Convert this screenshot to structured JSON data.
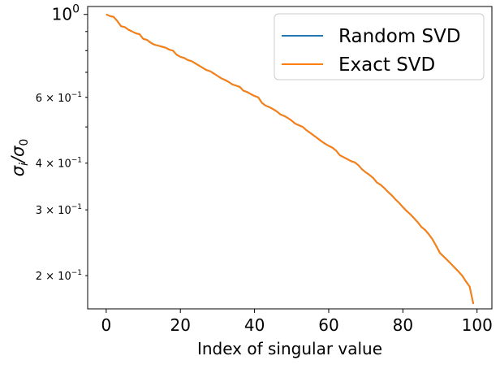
{
  "chart_data": {
    "type": "line",
    "title": "",
    "xlabel": "Index of singular value",
    "ylabel_main": "σ",
    "ylabel_sub1": "i",
    "ylabel_sep": "/",
    "ylabel_main2": "σ",
    "ylabel_sub2": "0",
    "xlim": [
      -5,
      104
    ],
    "ylim": [
      0.163,
      1.05
    ],
    "yscale": "log",
    "grid": false,
    "legend_position": "upper-right",
    "x_ticks": [
      0,
      20,
      40,
      60,
      80,
      100
    ],
    "x_tick_labels": [
      "0",
      "20",
      "40",
      "60",
      "80",
      "100"
    ],
    "y_major_ticks": [
      {
        "value": 1.0,
        "base": "10",
        "exp": "0",
        "coef": ""
      }
    ],
    "y_minor_labeled_ticks": [
      {
        "value": 0.6,
        "coef": "6 × ",
        "base": "10",
        "exp": "−1"
      },
      {
        "value": 0.4,
        "coef": "4 × ",
        "base": "10",
        "exp": "−1"
      },
      {
        "value": 0.3,
        "coef": "3 × ",
        "base": "10",
        "exp": "−1"
      },
      {
        "value": 0.2,
        "coef": "2 × ",
        "base": "10",
        "exp": "−1"
      }
    ],
    "y_minor_unlabeled_ticks": [
      0.9,
      0.8,
      0.7,
      0.5
    ],
    "series": [
      {
        "name": "Random SVD",
        "color": "#1f77b4",
        "x": [
          0,
          1,
          2,
          3,
          4,
          5,
          6,
          7,
          8,
          9,
          10,
          11,
          12,
          13,
          14,
          15,
          16,
          17,
          18,
          19,
          20,
          21,
          22,
          23,
          24,
          25,
          26,
          27,
          28,
          29,
          30,
          31,
          32,
          33,
          34,
          35,
          36,
          37,
          38,
          39,
          40,
          41,
          42,
          43,
          44,
          45,
          46,
          47,
          48,
          49,
          50,
          51,
          52,
          53,
          54,
          55,
          56,
          57,
          58,
          59,
          60,
          61,
          62,
          63,
          64,
          65,
          66,
          67,
          68,
          69,
          70,
          71,
          72,
          73,
          74,
          75,
          76,
          77,
          78,
          79,
          80,
          81,
          82,
          83,
          84,
          85,
          86,
          87,
          88,
          89,
          90,
          91,
          92,
          93,
          94,
          95,
          96,
          97,
          98,
          99
        ],
        "values": [
          1.0,
          0.99,
          0.985,
          0.96,
          0.93,
          0.925,
          0.91,
          0.9,
          0.89,
          0.885,
          0.86,
          0.855,
          0.84,
          0.83,
          0.825,
          0.82,
          0.815,
          0.805,
          0.8,
          0.78,
          0.77,
          0.765,
          0.755,
          0.75,
          0.74,
          0.73,
          0.72,
          0.71,
          0.705,
          0.695,
          0.685,
          0.675,
          0.668,
          0.66,
          0.65,
          0.645,
          0.64,
          0.625,
          0.62,
          0.612,
          0.605,
          0.6,
          0.58,
          0.57,
          0.565,
          0.558,
          0.55,
          0.54,
          0.535,
          0.528,
          0.52,
          0.51,
          0.505,
          0.5,
          0.49,
          0.482,
          0.474,
          0.466,
          0.458,
          0.451,
          0.445,
          0.44,
          0.432,
          0.42,
          0.415,
          0.41,
          0.405,
          0.402,
          0.395,
          0.385,
          0.378,
          0.372,
          0.365,
          0.355,
          0.35,
          0.343,
          0.335,
          0.328,
          0.32,
          0.313,
          0.305,
          0.298,
          0.292,
          0.285,
          0.278,
          0.27,
          0.265,
          0.258,
          0.25,
          0.24,
          0.23,
          0.225,
          0.22,
          0.215,
          0.21,
          0.205,
          0.2,
          0.193,
          0.187,
          0.168
        ]
      },
      {
        "name": "Exact SVD",
        "color": "#ff7f0e",
        "x": [
          0,
          1,
          2,
          3,
          4,
          5,
          6,
          7,
          8,
          9,
          10,
          11,
          12,
          13,
          14,
          15,
          16,
          17,
          18,
          19,
          20,
          21,
          22,
          23,
          24,
          25,
          26,
          27,
          28,
          29,
          30,
          31,
          32,
          33,
          34,
          35,
          36,
          37,
          38,
          39,
          40,
          41,
          42,
          43,
          44,
          45,
          46,
          47,
          48,
          49,
          50,
          51,
          52,
          53,
          54,
          55,
          56,
          57,
          58,
          59,
          60,
          61,
          62,
          63,
          64,
          65,
          66,
          67,
          68,
          69,
          70,
          71,
          72,
          73,
          74,
          75,
          76,
          77,
          78,
          79,
          80,
          81,
          82,
          83,
          84,
          85,
          86,
          87,
          88,
          89,
          90,
          91,
          92,
          93,
          94,
          95,
          96,
          97,
          98,
          99
        ],
        "values": [
          1.0,
          0.99,
          0.985,
          0.96,
          0.93,
          0.925,
          0.91,
          0.9,
          0.89,
          0.885,
          0.86,
          0.855,
          0.84,
          0.83,
          0.825,
          0.82,
          0.815,
          0.805,
          0.8,
          0.78,
          0.77,
          0.765,
          0.755,
          0.75,
          0.74,
          0.73,
          0.72,
          0.71,
          0.705,
          0.695,
          0.685,
          0.675,
          0.668,
          0.66,
          0.65,
          0.645,
          0.64,
          0.625,
          0.62,
          0.612,
          0.605,
          0.6,
          0.58,
          0.57,
          0.565,
          0.558,
          0.55,
          0.54,
          0.535,
          0.528,
          0.52,
          0.51,
          0.505,
          0.5,
          0.49,
          0.482,
          0.474,
          0.466,
          0.458,
          0.451,
          0.445,
          0.44,
          0.432,
          0.42,
          0.415,
          0.41,
          0.405,
          0.402,
          0.395,
          0.385,
          0.378,
          0.372,
          0.365,
          0.355,
          0.35,
          0.343,
          0.335,
          0.328,
          0.32,
          0.313,
          0.305,
          0.298,
          0.292,
          0.285,
          0.278,
          0.27,
          0.265,
          0.258,
          0.25,
          0.24,
          0.23,
          0.225,
          0.22,
          0.215,
          0.21,
          0.205,
          0.2,
          0.193,
          0.187,
          0.168
        ]
      }
    ]
  }
}
